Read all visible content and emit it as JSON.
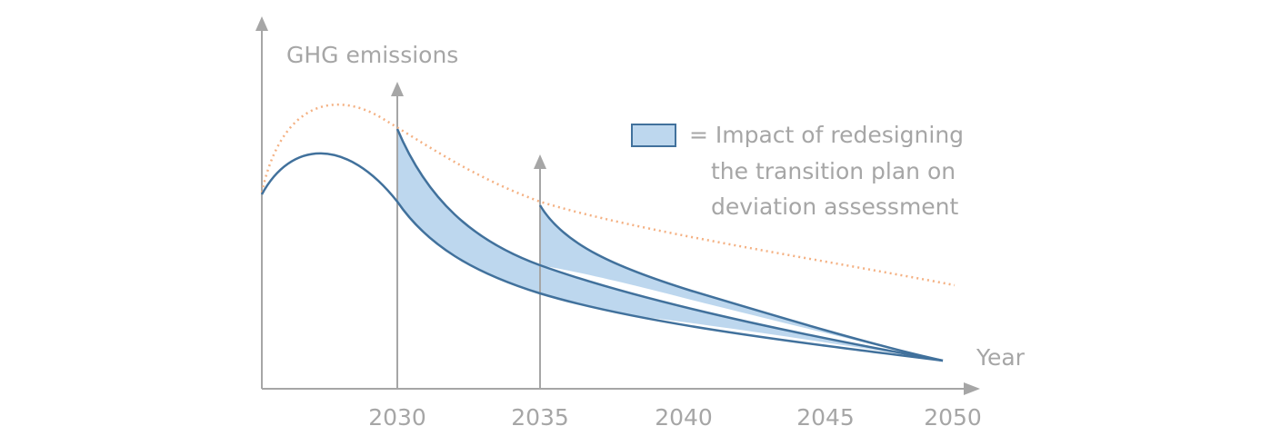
{
  "axes": {
    "y_title": "GHG emissions",
    "x_title": "Year",
    "x_ticks": [
      "2030",
      "2035",
      "2040",
      "2045",
      "2050"
    ]
  },
  "legend": {
    "lines": [
      "= Impact of redesigning",
      "the transition plan on",
      "deviation assessment"
    ]
  },
  "colors": {
    "axis": "#a6a6a6",
    "curve": "#41719c",
    "band_fill": "#bdd7ee",
    "dotted_curve": "#f4b183"
  }
}
